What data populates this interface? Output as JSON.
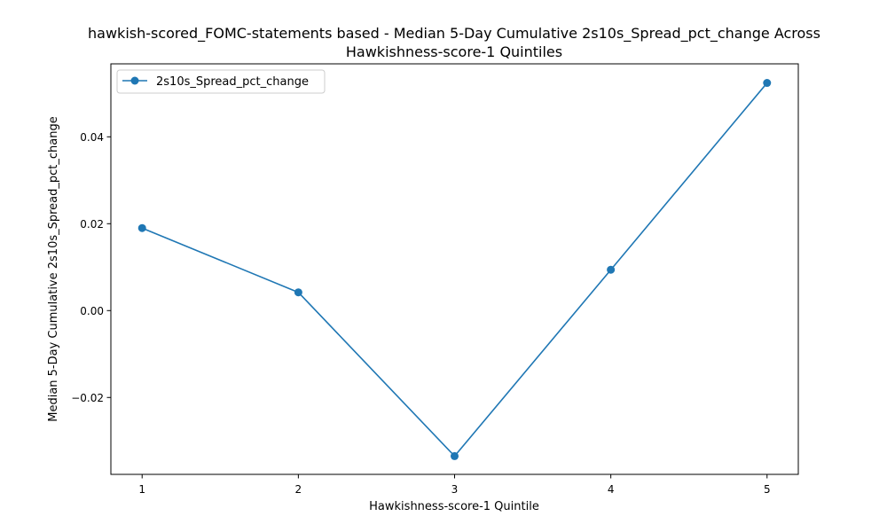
{
  "chart_data": {
    "type": "line",
    "title_line1": "hawkish-scored_FOMC-statements based - Median 5-Day Cumulative 2s10s_Spread_pct_change Across",
    "title_line2": "Hawkishness-score-1 Quintiles",
    "xlabel": "Hawkishness-score-1 Quintile",
    "ylabel": "Median 5-Day Cumulative 2s10s_Spread_pct_change",
    "x": [
      1,
      2,
      3,
      4,
      5
    ],
    "x_tick_labels": [
      "1",
      "2",
      "3",
      "4",
      "5"
    ],
    "xlim": [
      0.8,
      5.2
    ],
    "ylim": [
      -0.0377,
      0.0568
    ],
    "y_ticks": [
      -0.02,
      0.0,
      0.02,
      0.04
    ],
    "y_tick_labels": [
      "−0.02",
      "0.00",
      "0.02",
      "0.04"
    ],
    "grid": false,
    "legend_position": "top-left",
    "series": [
      {
        "name": "2s10s_Spread_pct_change",
        "color": "#1f77b4",
        "marker": "circle",
        "values": [
          0.019,
          0.0042,
          -0.0335,
          0.0094,
          0.0524
        ]
      }
    ]
  }
}
